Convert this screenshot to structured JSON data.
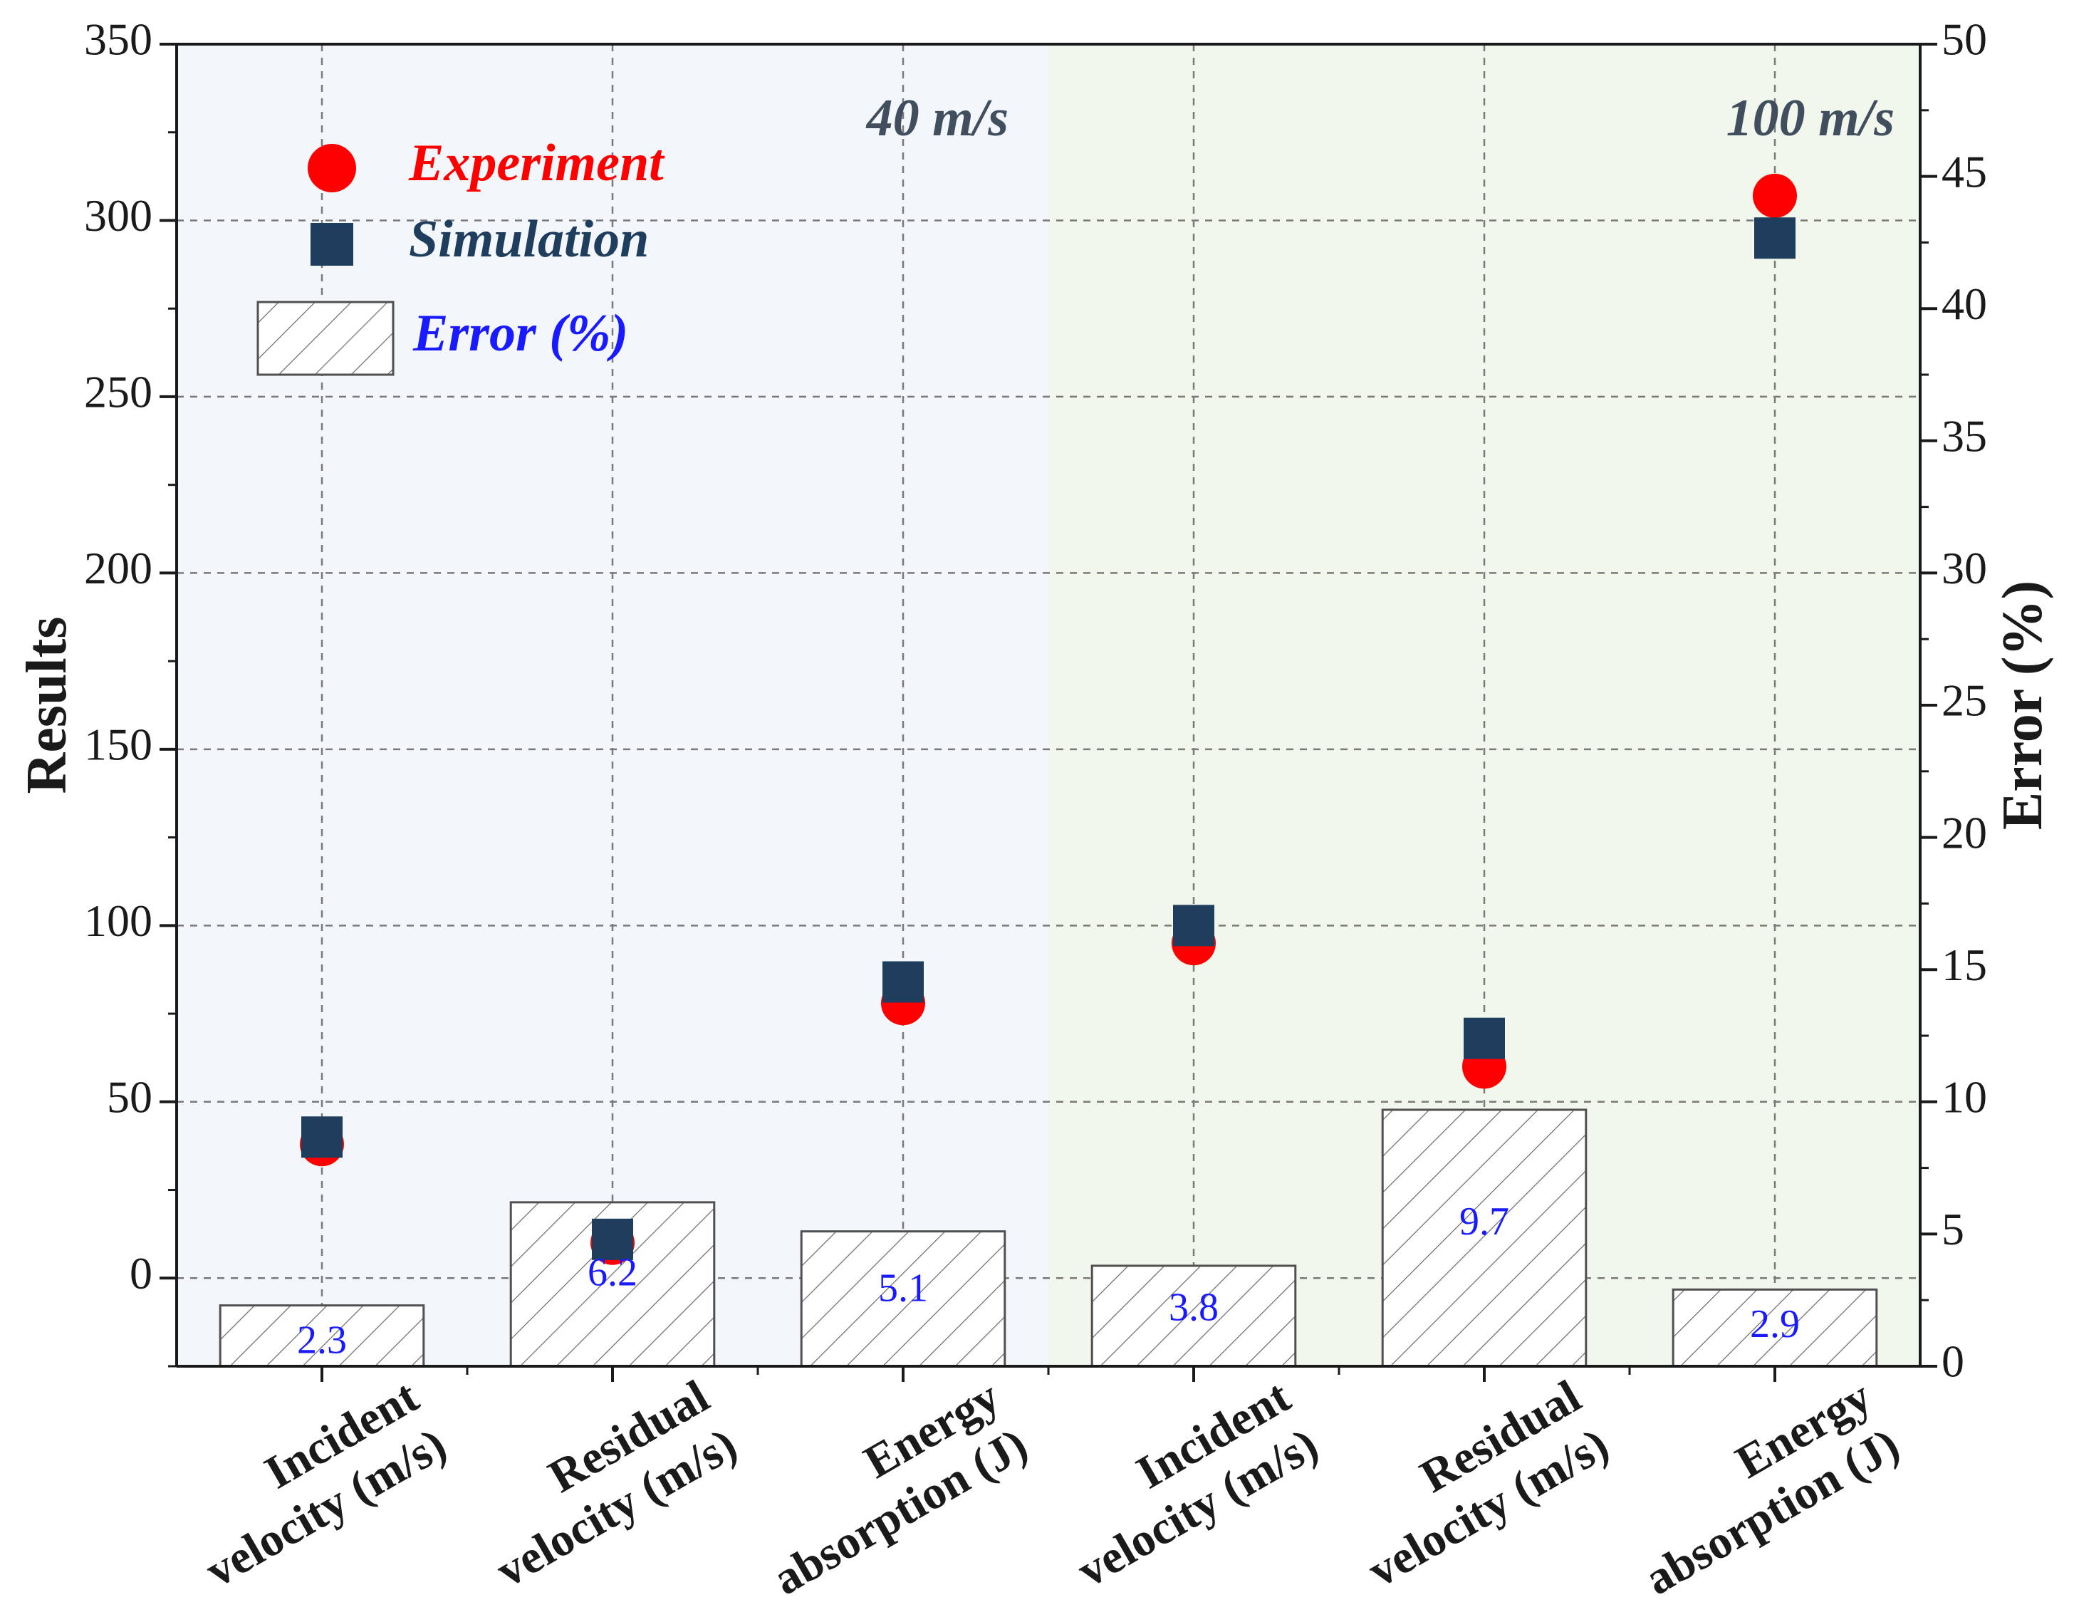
{
  "chart_data": {
    "type": "bar+scatter",
    "categories": [
      [
        "Incident",
        "velocity (m/s)"
      ],
      [
        "Residual",
        "velocity (m/s)"
      ],
      [
        "Energy",
        "absorption (J)"
      ],
      [
        "Incident",
        "velocity (m/s)"
      ],
      [
        "Residual",
        "velocity (m/s)"
      ],
      [
        "Energy",
        "absorption (J)"
      ]
    ],
    "regions": [
      {
        "label": "40 m/s",
        "color": "#f3f7fb"
      },
      {
        "label": "100 m/s",
        "color": "#f1f7ec"
      }
    ],
    "series": [
      {
        "name": "Experiment",
        "kind": "scatter",
        "marker": "circle",
        "color": "#ff0000",
        "axis": "left",
        "values": [
          38,
          10,
          78,
          95,
          60,
          307
        ]
      },
      {
        "name": "Simulation",
        "kind": "scatter",
        "marker": "square",
        "color": "#1f3d5c",
        "axis": "left",
        "values": [
          40,
          11,
          84,
          100,
          68,
          295
        ]
      },
      {
        "name": "Error (%)",
        "kind": "bar",
        "pattern": "hatch",
        "color": "#ffffff",
        "axis": "right",
        "values": [
          2.3,
          6.2,
          5.1,
          3.8,
          9.7,
          2.9
        ],
        "labels": [
          "2.3",
          "6.2",
          "5.1",
          "3.8",
          "9.7",
          "2.9"
        ]
      }
    ],
    "ylabel": "Results",
    "y2label": "Error (%)",
    "ylim": [
      -25,
      350
    ],
    "y2lim": [
      0,
      50
    ],
    "yticks": [
      0,
      50,
      100,
      150,
      200,
      250,
      300,
      350
    ],
    "yticklabels": [
      "0",
      "50",
      "100",
      "150",
      "200",
      "250",
      "300",
      "350"
    ],
    "y2ticks": [
      0,
      5,
      10,
      15,
      20,
      25,
      30,
      35,
      40,
      45,
      50
    ],
    "y2ticklabels": [
      "0",
      "5",
      "10",
      "15",
      "20",
      "25",
      "30",
      "35",
      "40",
      "45",
      "50"
    ],
    "grid": true,
    "legend_position": "top-left",
    "legend_colors": {
      "Experiment": "#ff0000",
      "Simulation": "#1f3d5c",
      "Error (%)": "#1a1aff"
    }
  }
}
